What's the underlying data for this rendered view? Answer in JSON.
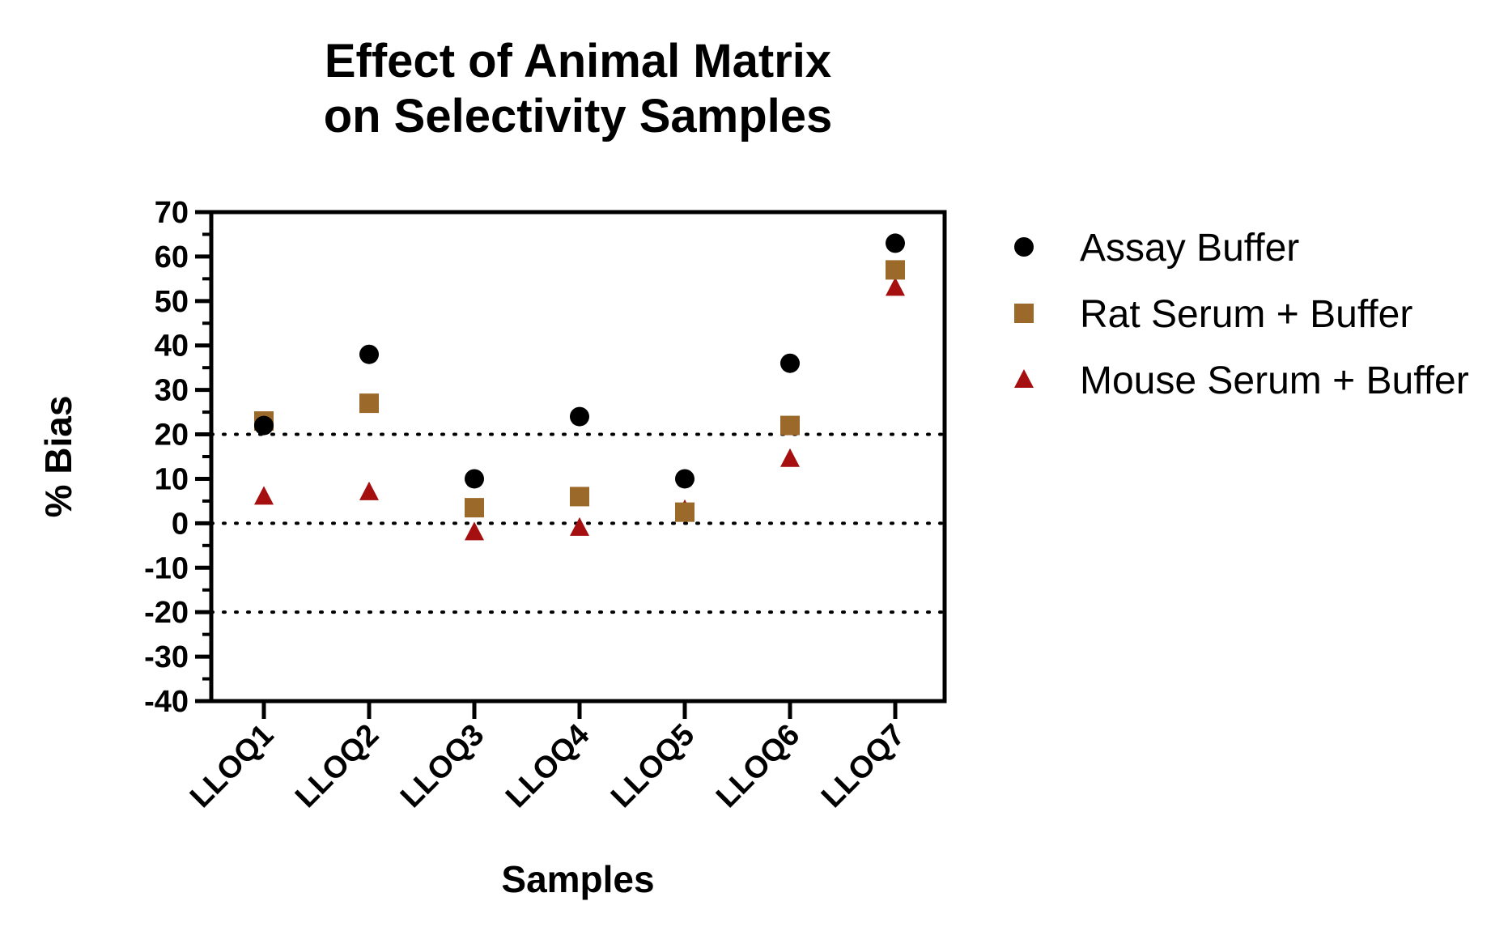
{
  "chart_data": {
    "type": "scatter",
    "title": [
      "Effect of Animal Matrix",
      "on Selectivity Samples"
    ],
    "xlabel": "Samples",
    "ylabel": "% Bias",
    "categories": [
      "LLOQ1",
      "LLOQ2",
      "LLOQ3",
      "LLOQ4",
      "LLOQ5",
      "LLOQ6",
      "LLOQ7"
    ],
    "ylim": [
      -40,
      70
    ],
    "yticks": [
      70,
      60,
      50,
      40,
      30,
      20,
      10,
      0,
      -10,
      -20,
      -30,
      -40
    ],
    "ytick_labels": [
      "70",
      "60",
      "50",
      "40",
      "30",
      "20",
      "10",
      "0",
      "-10",
      "-20",
      "-30",
      "-40"
    ],
    "reference_lines": [
      20,
      0,
      -20
    ],
    "grid": false,
    "legend_position": "right",
    "series": [
      {
        "name": "Assay Buffer",
        "marker": "circle",
        "color": "#000000",
        "values": [
          22,
          38,
          10,
          24,
          10,
          36,
          63
        ]
      },
      {
        "name": "Rat Serum + Buffer",
        "marker": "square",
        "color": "#9B6A2A",
        "values": [
          23,
          27,
          3.5,
          6,
          2.5,
          22,
          57
        ]
      },
      {
        "name": "Mouse Serum + Buffer",
        "marker": "triangle",
        "color": "#A50F0F",
        "values": [
          6,
          7,
          -2,
          -1,
          3,
          14.5,
          53
        ]
      }
    ]
  }
}
